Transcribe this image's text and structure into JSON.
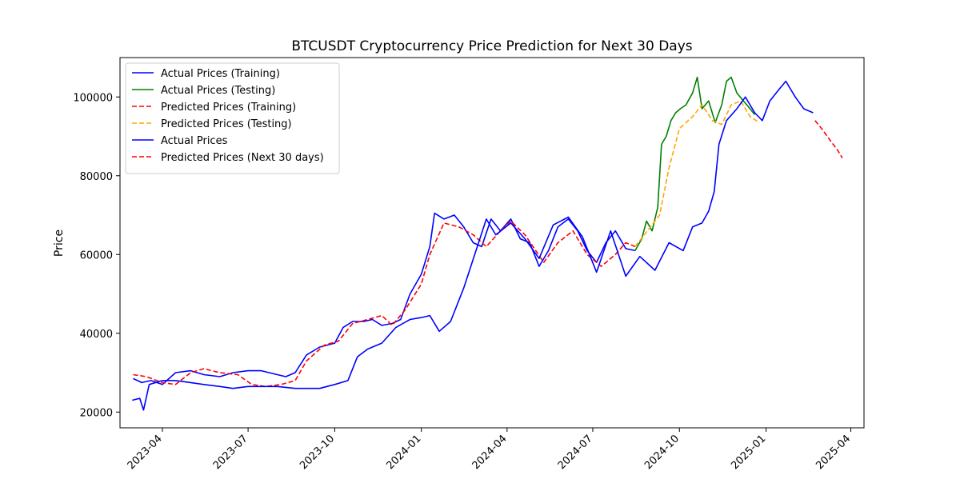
{
  "chart_data": {
    "type": "line",
    "title": "BTCUSDT Cryptocurrency Price Prediction for Next 30 Days",
    "xlabel": "",
    "ylabel": "Price",
    "x_type": "date",
    "xlim": [
      "2023-02-15",
      "2025-04-15"
    ],
    "ylim": [
      16000,
      110000
    ],
    "x_ticks": [
      "2023-04-01",
      "2023-07-01",
      "2023-10-01",
      "2024-01-01",
      "2024-04-01",
      "2024-07-01",
      "2024-10-01",
      "2025-01-01",
      "2025-04-01"
    ],
    "x_tick_labels": [
      "2023-04",
      "2023-07",
      "2023-10",
      "2024-01",
      "2024-04",
      "2024-07",
      "2024-10",
      "2025-01",
      "2025-04"
    ],
    "y_ticks": [
      20000,
      40000,
      60000,
      80000,
      100000
    ],
    "y_tick_labels": [
      "20000",
      "40000",
      "60000",
      "80000",
      "100000"
    ],
    "grid": false,
    "legend_position": "top-left",
    "series": [
      {
        "name": "Actual Prices (Training)",
        "color": "#0000ff",
        "style": "solid",
        "points": [
          [
            "2023-03-01",
            28500
          ],
          [
            "2023-03-10",
            27500
          ],
          [
            "2023-03-20",
            28000
          ],
          [
            "2023-04-01",
            27000
          ],
          [
            "2023-04-15",
            30000
          ],
          [
            "2023-05-01",
            30500
          ],
          [
            "2023-05-15",
            29500
          ],
          [
            "2023-06-01",
            29000
          ],
          [
            "2023-06-15",
            30000
          ],
          [
            "2023-07-01",
            30500
          ],
          [
            "2023-07-15",
            30500
          ],
          [
            "2023-08-01",
            29500
          ],
          [
            "2023-08-10",
            29000
          ],
          [
            "2023-08-20",
            30000
          ],
          [
            "2023-09-01",
            34500
          ],
          [
            "2023-09-15",
            36500
          ],
          [
            "2023-10-01",
            37500
          ],
          [
            "2023-10-10",
            41500
          ],
          [
            "2023-10-20",
            43000
          ],
          [
            "2023-11-01",
            43000
          ],
          [
            "2023-11-10",
            43500
          ],
          [
            "2023-11-20",
            42000
          ],
          [
            "2023-12-01",
            42500
          ],
          [
            "2023-12-10",
            43500
          ],
          [
            "2023-12-20",
            50000
          ],
          [
            "2024-01-01",
            55000
          ],
          [
            "2024-01-10",
            62000
          ],
          [
            "2024-01-15",
            70500
          ],
          [
            "2024-01-25",
            69000
          ],
          [
            "2024-02-05",
            70000
          ],
          [
            "2024-02-15",
            67000
          ],
          [
            "2024-02-25",
            63000
          ],
          [
            "2024-03-05",
            62000
          ],
          [
            "2024-03-15",
            69000
          ],
          [
            "2024-03-25",
            66000
          ],
          [
            "2024-04-05",
            69000
          ],
          [
            "2024-04-15",
            64000
          ],
          [
            "2024-04-25",
            63000
          ],
          [
            "2024-05-05",
            57000
          ],
          [
            "2024-05-15",
            61000
          ],
          [
            "2024-05-25",
            67000
          ],
          [
            "2024-06-05",
            69000
          ],
          [
            "2024-06-15",
            66000
          ],
          [
            "2024-06-25",
            61000
          ],
          [
            "2024-07-05",
            58000
          ],
          [
            "2024-07-15",
            63000
          ],
          [
            "2024-07-25",
            66000
          ],
          [
            "2024-08-05",
            61500
          ],
          [
            "2024-08-15",
            61000
          ]
        ]
      },
      {
        "name": "Actual Prices (Testing)",
        "color": "#008000",
        "style": "solid",
        "points": [
          [
            "2024-08-15",
            61000
          ],
          [
            "2024-08-22",
            64000
          ],
          [
            "2024-08-27",
            68500
          ],
          [
            "2024-09-02",
            66000
          ],
          [
            "2024-09-08",
            72000
          ],
          [
            "2024-09-12",
            88000
          ],
          [
            "2024-09-17",
            90000
          ],
          [
            "2024-09-22",
            94000
          ],
          [
            "2024-09-27",
            96000
          ],
          [
            "2024-10-02",
            97000
          ],
          [
            "2024-10-08",
            98000
          ],
          [
            "2024-10-15",
            101000
          ],
          [
            "2024-10-20",
            105000
          ],
          [
            "2024-10-25",
            97000
          ],
          [
            "2024-11-01",
            99000
          ],
          [
            "2024-11-08",
            93500
          ],
          [
            "2024-11-15",
            98000
          ],
          [
            "2024-11-20",
            104000
          ],
          [
            "2024-11-25",
            105000
          ],
          [
            "2024-12-01",
            101000
          ],
          [
            "2024-12-08",
            99000
          ],
          [
            "2024-12-15",
            97000
          ],
          [
            "2024-12-20",
            95500
          ]
        ]
      },
      {
        "name": "Predicted Prices (Training)",
        "color": "#ff0000",
        "style": "dashed",
        "points": [
          [
            "2023-03-01",
            29500
          ],
          [
            "2023-03-15",
            29000
          ],
          [
            "2023-04-01",
            27500
          ],
          [
            "2023-04-15",
            27000
          ],
          [
            "2023-05-01",
            30000
          ],
          [
            "2023-05-15",
            31000
          ],
          [
            "2023-06-01",
            30000
          ],
          [
            "2023-06-20",
            29500
          ],
          [
            "2023-07-05",
            27000
          ],
          [
            "2023-07-20",
            26500
          ],
          [
            "2023-08-05",
            27000
          ],
          [
            "2023-08-20",
            28000
          ],
          [
            "2023-09-01",
            33000
          ],
          [
            "2023-09-20",
            37000
          ],
          [
            "2023-10-05",
            38000
          ],
          [
            "2023-10-20",
            42500
          ],
          [
            "2023-11-05",
            43500
          ],
          [
            "2023-11-20",
            44500
          ],
          [
            "2023-12-01",
            42000
          ],
          [
            "2023-12-15",
            46000
          ],
          [
            "2024-01-01",
            52500
          ],
          [
            "2024-01-10",
            60000
          ],
          [
            "2024-01-25",
            68000
          ],
          [
            "2024-02-10",
            67000
          ],
          [
            "2024-02-25",
            65000
          ],
          [
            "2024-03-10",
            62000
          ],
          [
            "2024-03-25",
            66000
          ],
          [
            "2024-04-05",
            68500
          ],
          [
            "2024-04-20",
            65000
          ],
          [
            "2024-05-10",
            58000
          ],
          [
            "2024-05-25",
            63000
          ],
          [
            "2024-06-10",
            66000
          ],
          [
            "2024-06-25",
            60000
          ],
          [
            "2024-07-10",
            57000
          ],
          [
            "2024-07-25",
            60000
          ],
          [
            "2024-08-05",
            63000
          ],
          [
            "2024-08-15",
            62000
          ]
        ]
      },
      {
        "name": "Predicted Prices (Testing)",
        "color": "#ffa500",
        "style": "dashed",
        "points": [
          [
            "2024-08-15",
            62000
          ],
          [
            "2024-08-28",
            66000
          ],
          [
            "2024-09-10",
            70000
          ],
          [
            "2024-09-20",
            82000
          ],
          [
            "2024-10-01",
            92000
          ],
          [
            "2024-10-15",
            95000
          ],
          [
            "2024-10-25",
            98000
          ],
          [
            "2024-11-05",
            94000
          ],
          [
            "2024-11-15",
            93000
          ],
          [
            "2024-11-25",
            98000
          ],
          [
            "2024-12-05",
            99000
          ],
          [
            "2024-12-15",
            95000
          ],
          [
            "2024-12-25",
            93500
          ]
        ]
      },
      {
        "name": "Actual Prices",
        "color": "#0000ff",
        "style": "solid",
        "points": [
          [
            "2023-02-28",
            23000
          ],
          [
            "2023-03-08",
            23500
          ],
          [
            "2023-03-12",
            20500
          ],
          [
            "2023-03-18",
            27000
          ],
          [
            "2023-04-01",
            28000
          ],
          [
            "2023-04-15",
            28000
          ],
          [
            "2023-05-01",
            27500
          ],
          [
            "2023-05-15",
            27000
          ],
          [
            "2023-06-01",
            26500
          ],
          [
            "2023-06-15",
            26000
          ],
          [
            "2023-07-01",
            26500
          ],
          [
            "2023-07-15",
            26500
          ],
          [
            "2023-08-01",
            26500
          ],
          [
            "2023-08-20",
            26000
          ],
          [
            "2023-09-01",
            26000
          ],
          [
            "2023-09-15",
            26000
          ],
          [
            "2023-10-01",
            27000
          ],
          [
            "2023-10-15",
            28000
          ],
          [
            "2023-10-25",
            34000
          ],
          [
            "2023-11-05",
            36000
          ],
          [
            "2023-11-20",
            37500
          ],
          [
            "2023-12-05",
            41500
          ],
          [
            "2023-12-20",
            43500
          ],
          [
            "2024-01-01",
            44000
          ],
          [
            "2024-01-10",
            44500
          ],
          [
            "2024-01-20",
            40500
          ],
          [
            "2024-02-01",
            43000
          ],
          [
            "2024-02-15",
            51500
          ],
          [
            "2024-02-28",
            61000
          ],
          [
            "2024-03-10",
            69000
          ],
          [
            "2024-03-20",
            65000
          ],
          [
            "2024-04-05",
            68000
          ],
          [
            "2024-04-20",
            64000
          ],
          [
            "2024-05-05",
            59000
          ],
          [
            "2024-05-20",
            67500
          ],
          [
            "2024-06-05",
            69500
          ],
          [
            "2024-06-20",
            64500
          ],
          [
            "2024-07-05",
            55500
          ],
          [
            "2024-07-20",
            66000
          ],
          [
            "2024-08-05",
            54500
          ],
          [
            "2024-08-20",
            59500
          ],
          [
            "2024-09-05",
            56000
          ],
          [
            "2024-09-20",
            63000
          ],
          [
            "2024-10-05",
            61000
          ],
          [
            "2024-10-15",
            67000
          ],
          [
            "2024-10-25",
            68000
          ],
          [
            "2024-11-01",
            71000
          ],
          [
            "2024-11-07",
            76000
          ],
          [
            "2024-11-12",
            88000
          ],
          [
            "2024-11-20",
            94000
          ],
          [
            "2024-12-01",
            97000
          ],
          [
            "2024-12-10",
            100000
          ],
          [
            "2024-12-20",
            96000
          ],
          [
            "2024-12-28",
            94000
          ],
          [
            "2025-01-05",
            99000
          ],
          [
            "2025-01-15",
            102000
          ],
          [
            "2025-01-22",
            104000
          ],
          [
            "2025-02-01",
            100000
          ],
          [
            "2025-02-10",
            97000
          ],
          [
            "2025-02-20",
            96000
          ]
        ]
      },
      {
        "name": "Predicted Prices (Next 30 days)",
        "color": "#ff0000",
        "style": "dashed",
        "points": [
          [
            "2025-02-22",
            94000
          ],
          [
            "2025-03-01",
            92000
          ],
          [
            "2025-03-10",
            89000
          ],
          [
            "2025-03-18",
            86500
          ],
          [
            "2025-03-23",
            84500
          ]
        ]
      }
    ]
  }
}
